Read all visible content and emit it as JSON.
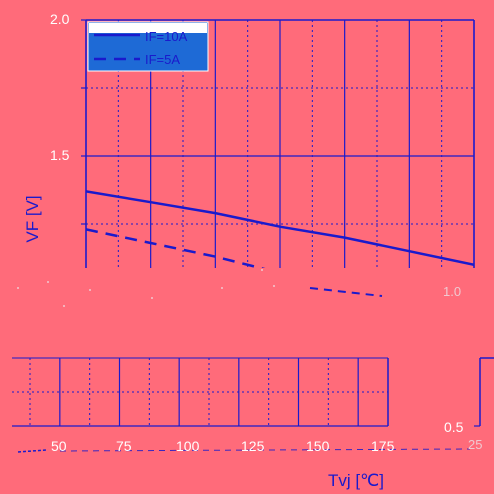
{
  "chart_data": {
    "type": "line",
    "title": "",
    "xlabel": "Tvj [℃]",
    "ylabel": "VF [V]",
    "xlim": [
      25,
      175
    ],
    "ylim": [
      0.5,
      2.0
    ],
    "x_ticks": [
      "25",
      "50",
      "75",
      "100",
      "125",
      "150",
      "175"
    ],
    "y_ticks": [
      "2.0",
      "1.5",
      "1.0",
      "0.5"
    ],
    "grid": true,
    "legend_position": "top-left",
    "x": [
      25,
      50,
      75,
      100,
      125,
      150,
      175
    ],
    "series": [
      {
        "name": "IF=10A",
        "style": "solid",
        "values": [
          1.37,
          1.33,
          1.29,
          1.24,
          1.2,
          1.15,
          1.1
        ]
      },
      {
        "name": "IF=5A",
        "style": "dashed",
        "values": [
          1.23,
          1.18,
          1.13,
          1.07,
          1.01,
          0.95,
          0.89
        ]
      }
    ]
  },
  "colors": {
    "background": "#ff6b7a",
    "line": "#1a1acc",
    "grid": "#1a1acc",
    "legend_fill": "#1e6ad6"
  }
}
